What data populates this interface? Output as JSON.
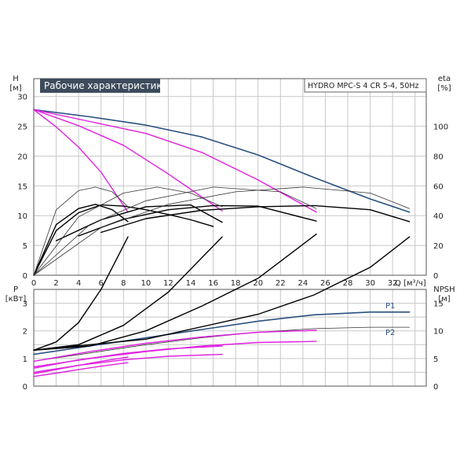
{
  "chart_title": "Рабочие характеристики",
  "model_label": "HYDRO MPC-S 4 CR 5-4, 50Hz",
  "colors": {
    "blue": "#2a5180",
    "magenta": "#e020e0",
    "black": "#000000",
    "thin": "#333333",
    "grid": "#c8c8c8",
    "header": "#3d4b5c"
  },
  "chart_data": [
    {
      "type": "line",
      "title": "Рабочие характеристики",
      "xlabel": "Q [м³/ч]",
      "xlim": [
        0,
        35
      ],
      "xticks": [
        0,
        2,
        4,
        6,
        8,
        10,
        12,
        14,
        16,
        18,
        20,
        22,
        24,
        26,
        28,
        30,
        32
      ],
      "ylabel_left": "H\n[м]",
      "ylim_left": [
        0,
        33
      ],
      "yticks_left": [
        0,
        5,
        10,
        15,
        20,
        25,
        30
      ],
      "ylabel_right": "eta\n[%]",
      "ylim_right": [
        0,
        132
      ],
      "yticks_right": [
        0,
        20,
        40,
        60,
        80,
        100
      ],
      "series": [
        {
          "role": "head",
          "color": "blue",
          "x": [
            0,
            5,
            10,
            15,
            20,
            25,
            30,
            33.5
          ],
          "y": [
            27.8,
            26.6,
            25.2,
            23.2,
            20.2,
            16.4,
            12.8,
            10.6
          ]
        },
        {
          "role": "head",
          "color": "magenta",
          "x": [
            0,
            5,
            10,
            15,
            20,
            25.2
          ],
          "y": [
            27.8,
            25.8,
            23.8,
            20.6,
            16.0,
            10.6
          ]
        },
        {
          "role": "head",
          "color": "magenta",
          "x": [
            0,
            4,
            8,
            12,
            16.8
          ],
          "y": [
            27.8,
            25.1,
            21.8,
            17.0,
            10.8
          ]
        },
        {
          "role": "head",
          "color": "magenta",
          "x": [
            0,
            2,
            4,
            6,
            8.4
          ],
          "y": [
            27.8,
            24.9,
            21.5,
            17.3,
            10.6
          ]
        },
        {
          "role": "eff",
          "color": "black",
          "x": [
            0,
            2,
            4,
            6,
            8,
            10,
            12,
            14,
            16
          ],
          "y": [
            0,
            7.5,
            10.5,
            11.8,
            11.6,
            11.0,
            10.2,
            9.3,
            8.2
          ]
        },
        {
          "role": "eff",
          "color": "black",
          "x": [
            0,
            2,
            4,
            5.5,
            7,
            8.4
          ],
          "y": [
            0,
            8.5,
            11.2,
            11.9,
            11.0,
            9.0
          ]
        },
        {
          "role": "eff",
          "color": "black",
          "x": [
            2,
            6,
            10,
            14,
            16.8
          ],
          "y": [
            5.8,
            9.3,
            11.5,
            11.8,
            8.9
          ]
        },
        {
          "role": "eff",
          "color": "black",
          "x": [
            4,
            8,
            12,
            16,
            20,
            25.2
          ],
          "y": [
            6.6,
            9.4,
            11.0,
            11.7,
            11.6,
            9.1
          ]
        },
        {
          "role": "eff",
          "color": "black",
          "x": [
            6,
            10,
            15,
            20,
            25,
            30,
            33.5
          ],
          "y": [
            7.2,
            9.5,
            10.9,
            11.5,
            11.7,
            11.0,
            9.0
          ]
        },
        {
          "role": "eff-thin",
          "color": "thin",
          "x": [
            0,
            2,
            4,
            5.5,
            7,
            8.4
          ],
          "y": [
            0,
            11.0,
            14.2,
            14.8,
            14.0,
            11.5
          ]
        },
        {
          "role": "eff-thin",
          "color": "thin",
          "x": [
            0,
            4,
            8,
            11,
            14,
            16.8
          ],
          "y": [
            0,
            9.8,
            13.8,
            14.8,
            13.8,
            11.5
          ]
        },
        {
          "role": "eff-thin",
          "color": "thin",
          "x": [
            0,
            5,
            10,
            16,
            22,
            25.2
          ],
          "y": [
            0,
            8.5,
            12.5,
            14.8,
            14.0,
            11.2
          ]
        },
        {
          "role": "eff-thin",
          "color": "thin",
          "x": [
            0,
            6,
            12,
            18,
            24,
            30,
            33.5
          ],
          "y": [
            0,
            8.0,
            11.9,
            14.0,
            14.8,
            13.8,
            11.2
          ]
        }
      ]
    },
    {
      "type": "line",
      "xlim": [
        0,
        35
      ],
      "ylabel_left": "P\n[кВт]",
      "ylim_left": [
        0,
        3.5
      ],
      "yticks_left": [
        0,
        1,
        2,
        3
      ],
      "ylabel_right": "NPSH\n[м]",
      "ylim_right": [
        0,
        17.5
      ],
      "yticks_right": [
        0,
        5,
        10,
        15
      ],
      "labels": [
        "P1",
        "P2"
      ],
      "series": [
        {
          "role": "P1",
          "color": "blue",
          "x": [
            0,
            5,
            10,
            15,
            20,
            25,
            30,
            33.5
          ],
          "y": [
            1.15,
            1.45,
            1.75,
            2.05,
            2.35,
            2.58,
            2.68,
            2.68
          ]
        },
        {
          "role": "P2",
          "color": "thin",
          "x": [
            0,
            5,
            10,
            15,
            20,
            25,
            30,
            33.5
          ],
          "y": [
            0.9,
            1.2,
            1.5,
            1.75,
            1.95,
            2.08,
            2.13,
            2.13
          ]
        },
        {
          "role": "P1",
          "color": "magenta",
          "x": [
            0,
            5,
            10,
            15,
            20,
            25.2
          ],
          "y": [
            0.9,
            1.25,
            1.55,
            1.78,
            1.95,
            2.02
          ]
        },
        {
          "role": "P2",
          "color": "magenta",
          "x": [
            0,
            5,
            10,
            15,
            20,
            25.2
          ],
          "y": [
            0.7,
            1.0,
            1.25,
            1.45,
            1.58,
            1.62
          ]
        },
        {
          "role": "P1",
          "color": "magenta",
          "x": [
            0,
            4,
            8,
            12,
            16.8
          ],
          "y": [
            0.65,
            0.95,
            1.18,
            1.35,
            1.45
          ]
        },
        {
          "role": "P2",
          "color": "magenta",
          "x": [
            0,
            4,
            8,
            12,
            16.8
          ],
          "y": [
            0.5,
            0.75,
            0.95,
            1.08,
            1.15
          ]
        },
        {
          "role": "P1",
          "color": "magenta",
          "x": [
            0,
            2,
            4,
            6,
            8.4
          ],
          "y": [
            0.45,
            0.6,
            0.75,
            0.9,
            1.05
          ]
        },
        {
          "role": "P2",
          "color": "magenta",
          "x": [
            0,
            2,
            4,
            6,
            8.4
          ],
          "y": [
            0.35,
            0.47,
            0.6,
            0.72,
            0.85
          ]
        },
        {
          "role": "NPSH",
          "color": "black",
          "x": [
            0,
            2,
            4,
            6,
            8.4
          ],
          "y": [
            1.3,
            1.6,
            2.3,
            3.5,
            5.4
          ]
        },
        {
          "role": "NPSH",
          "color": "black",
          "x": [
            0,
            4,
            8,
            12,
            16.8
          ],
          "y": [
            1.3,
            1.5,
            2.2,
            3.4,
            5.4
          ]
        },
        {
          "role": "NPSH",
          "color": "black",
          "x": [
            0,
            5,
            10,
            15,
            20,
            25.2
          ],
          "y": [
            1.3,
            1.45,
            2.0,
            2.9,
            3.9,
            5.5
          ]
        },
        {
          "role": "NPSH",
          "color": "black",
          "x": [
            0,
            10,
            20,
            25,
            30,
            33.5
          ],
          "y": [
            1.3,
            1.7,
            2.6,
            3.3,
            4.3,
            5.4
          ]
        }
      ]
    }
  ]
}
